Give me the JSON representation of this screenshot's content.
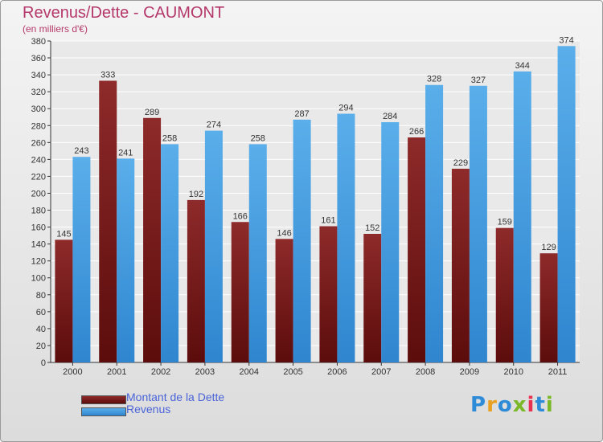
{
  "title": "Revenus/Dette - CAUMONT",
  "subtitle": "(en milliers d'€)",
  "logo": {
    "text": "Proxiti",
    "colors": [
      "#2e8bd8",
      "#e8a020",
      "#2e8bd8",
      "#7ab828",
      "#e83050",
      "#2e8bd8",
      "#7ab828"
    ]
  },
  "colors": {
    "dette": "#7a1f1f",
    "revenus": "#4a9fe0",
    "title": "#b5386a",
    "legend_text": "#4a63d8"
  },
  "chart_data": {
    "type": "bar",
    "categories": [
      "2000",
      "2001",
      "2002",
      "2003",
      "2004",
      "2005",
      "2006",
      "2007",
      "2008",
      "2009",
      "2010",
      "2011"
    ],
    "series": [
      {
        "name": "Montant de la Dette",
        "values": [
          145,
          333,
          289,
          192,
          166,
          146,
          161,
          152,
          266,
          229,
          159,
          129
        ]
      },
      {
        "name": "Revenus",
        "values": [
          243,
          241,
          258,
          274,
          258,
          287,
          294,
          284,
          328,
          327,
          344,
          374
        ]
      }
    ],
    "ylim": [
      0,
      380
    ],
    "yticks": [
      0,
      20,
      40,
      60,
      80,
      100,
      120,
      140,
      160,
      180,
      200,
      220,
      240,
      260,
      280,
      300,
      320,
      340,
      360,
      380
    ],
    "grid": true,
    "legend": "bottom-left"
  }
}
